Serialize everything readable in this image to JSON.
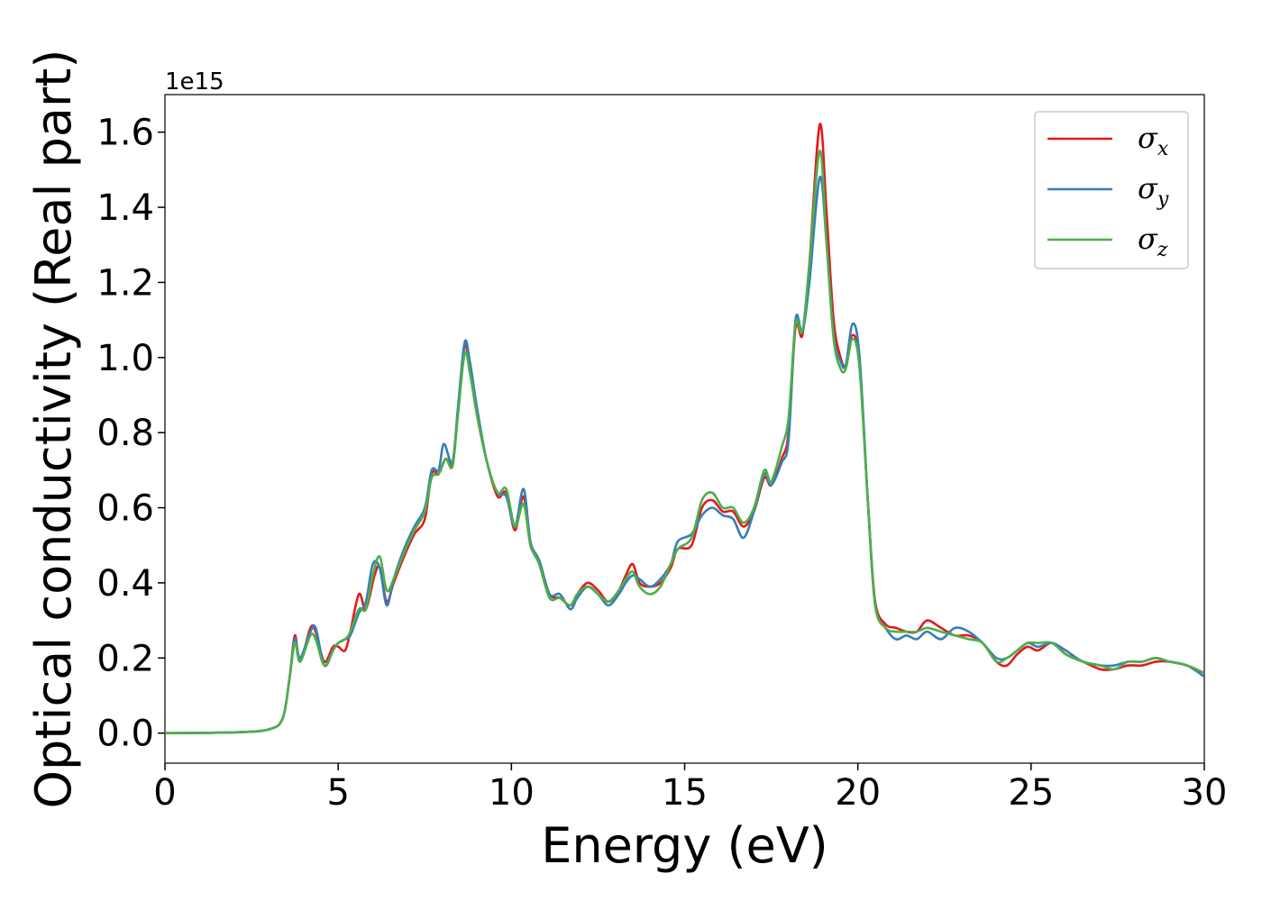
{
  "chart_data": {
    "type": "line",
    "title": "",
    "xlabel": "Energy (eV)",
    "ylabel": "Optical conductivity (Real part)",
    "y_offset_label": "1e15",
    "y_scale_factor": 1000000000000000.0,
    "xlim": [
      0,
      30
    ],
    "ylim": [
      -0.08,
      1.7
    ],
    "xticks": [
      0,
      5,
      10,
      15,
      20,
      25,
      30
    ],
    "xtick_labels": [
      "0",
      "5",
      "10",
      "15",
      "20",
      "25",
      "30"
    ],
    "yticks": [
      0.0,
      0.2,
      0.4,
      0.6,
      0.8,
      1.0,
      1.2,
      1.4,
      1.6
    ],
    "ytick_labels": [
      "0.0",
      "0.2",
      "0.4",
      "0.6",
      "0.8",
      "1.0",
      "1.2",
      "1.4",
      "1.6"
    ],
    "grid": false,
    "legend_position": "top-right",
    "series": [
      {
        "name": "σx",
        "symbol": "σ",
        "subscript": "x",
        "color": "#e41a1c",
        "points": [
          [
            0,
            0
          ],
          [
            2,
            0.002
          ],
          [
            3,
            0.01
          ],
          [
            3.4,
            0.04
          ],
          [
            3.6,
            0.15
          ],
          [
            3.75,
            0.26
          ],
          [
            3.9,
            0.19
          ],
          [
            4.2,
            0.28
          ],
          [
            4.35,
            0.27
          ],
          [
            4.6,
            0.19
          ],
          [
            4.85,
            0.23
          ],
          [
            5.0,
            0.23
          ],
          [
            5.2,
            0.22
          ],
          [
            5.35,
            0.27
          ],
          [
            5.6,
            0.37
          ],
          [
            5.8,
            0.33
          ],
          [
            6.05,
            0.42
          ],
          [
            6.2,
            0.44
          ],
          [
            6.4,
            0.35
          ],
          [
            6.6,
            0.4
          ],
          [
            6.9,
            0.47
          ],
          [
            7.2,
            0.53
          ],
          [
            7.5,
            0.57
          ],
          [
            7.7,
            0.69
          ],
          [
            7.9,
            0.69
          ],
          [
            8.1,
            0.73
          ],
          [
            8.3,
            0.72
          ],
          [
            8.45,
            0.85
          ],
          [
            8.65,
            1.03
          ],
          [
            8.8,
            0.97
          ],
          [
            9.0,
            0.85
          ],
          [
            9.3,
            0.72
          ],
          [
            9.6,
            0.63
          ],
          [
            9.85,
            0.64
          ],
          [
            10.1,
            0.54
          ],
          [
            10.35,
            0.63
          ],
          [
            10.55,
            0.5
          ],
          [
            10.8,
            0.46
          ],
          [
            11.1,
            0.37
          ],
          [
            11.4,
            0.36
          ],
          [
            11.7,
            0.34
          ],
          [
            11.9,
            0.37
          ],
          [
            12.2,
            0.4
          ],
          [
            12.5,
            0.38
          ],
          [
            12.8,
            0.35
          ],
          [
            13.1,
            0.38
          ],
          [
            13.3,
            0.42
          ],
          [
            13.5,
            0.45
          ],
          [
            13.7,
            0.4
          ],
          [
            14.0,
            0.39
          ],
          [
            14.3,
            0.4
          ],
          [
            14.6,
            0.44
          ],
          [
            14.8,
            0.49
          ],
          [
            15.2,
            0.5
          ],
          [
            15.5,
            0.6
          ],
          [
            15.8,
            0.62
          ],
          [
            16.1,
            0.59
          ],
          [
            16.4,
            0.59
          ],
          [
            16.7,
            0.55
          ],
          [
            17.0,
            0.59
          ],
          [
            17.3,
            0.68
          ],
          [
            17.5,
            0.66
          ],
          [
            17.8,
            0.73
          ],
          [
            18.0,
            0.8
          ],
          [
            18.2,
            1.08
          ],
          [
            18.4,
            1.06
          ],
          [
            18.6,
            1.25
          ],
          [
            18.9,
            1.62
          ],
          [
            19.1,
            1.38
          ],
          [
            19.3,
            1.1
          ],
          [
            19.5,
            1.0
          ],
          [
            19.65,
            0.98
          ],
          [
            19.85,
            1.06
          ],
          [
            20.05,
            0.98
          ],
          [
            20.3,
            0.6
          ],
          [
            20.5,
            0.35
          ],
          [
            20.8,
            0.29
          ],
          [
            21.1,
            0.28
          ],
          [
            21.4,
            0.27
          ],
          [
            21.7,
            0.27
          ],
          [
            22.0,
            0.3
          ],
          [
            22.4,
            0.28
          ],
          [
            22.8,
            0.26
          ],
          [
            23.2,
            0.26
          ],
          [
            23.6,
            0.24
          ],
          [
            24.0,
            0.19
          ],
          [
            24.3,
            0.18
          ],
          [
            24.6,
            0.21
          ],
          [
            24.9,
            0.23
          ],
          [
            25.2,
            0.22
          ],
          [
            25.6,
            0.24
          ],
          [
            26.0,
            0.21
          ],
          [
            26.5,
            0.19
          ],
          [
            27.0,
            0.17
          ],
          [
            27.4,
            0.17
          ],
          [
            27.8,
            0.18
          ],
          [
            28.2,
            0.18
          ],
          [
            28.6,
            0.19
          ],
          [
            29.0,
            0.19
          ],
          [
            29.5,
            0.18
          ],
          [
            30.0,
            0.16
          ]
        ]
      },
      {
        "name": "σy",
        "symbol": "σ",
        "subscript": "y",
        "color": "#377eb8",
        "points": [
          [
            0,
            0
          ],
          [
            2,
            0.002
          ],
          [
            3,
            0.01
          ],
          [
            3.4,
            0.04
          ],
          [
            3.6,
            0.15
          ],
          [
            3.75,
            0.25
          ],
          [
            3.9,
            0.2
          ],
          [
            4.2,
            0.27
          ],
          [
            4.35,
            0.28
          ],
          [
            4.6,
            0.18
          ],
          [
            4.85,
            0.22
          ],
          [
            5.0,
            0.24
          ],
          [
            5.2,
            0.25
          ],
          [
            5.35,
            0.26
          ],
          [
            5.6,
            0.32
          ],
          [
            5.8,
            0.35
          ],
          [
            6.0,
            0.45
          ],
          [
            6.2,
            0.44
          ],
          [
            6.4,
            0.34
          ],
          [
            6.6,
            0.41
          ],
          [
            6.9,
            0.49
          ],
          [
            7.2,
            0.55
          ],
          [
            7.5,
            0.6
          ],
          [
            7.7,
            0.7
          ],
          [
            7.9,
            0.7
          ],
          [
            8.05,
            0.77
          ],
          [
            8.3,
            0.72
          ],
          [
            8.45,
            0.86
          ],
          [
            8.65,
            1.04
          ],
          [
            8.8,
            0.99
          ],
          [
            9.0,
            0.87
          ],
          [
            9.3,
            0.72
          ],
          [
            9.6,
            0.64
          ],
          [
            9.85,
            0.63
          ],
          [
            10.1,
            0.55
          ],
          [
            10.35,
            0.65
          ],
          [
            10.55,
            0.51
          ],
          [
            10.8,
            0.46
          ],
          [
            11.1,
            0.37
          ],
          [
            11.4,
            0.37
          ],
          [
            11.7,
            0.33
          ],
          [
            11.9,
            0.36
          ],
          [
            12.2,
            0.39
          ],
          [
            12.5,
            0.37
          ],
          [
            12.8,
            0.34
          ],
          [
            13.1,
            0.37
          ],
          [
            13.3,
            0.4
          ],
          [
            13.5,
            0.42
          ],
          [
            13.7,
            0.41
          ],
          [
            14.0,
            0.39
          ],
          [
            14.3,
            0.41
          ],
          [
            14.6,
            0.45
          ],
          [
            14.8,
            0.51
          ],
          [
            15.2,
            0.53
          ],
          [
            15.5,
            0.58
          ],
          [
            15.8,
            0.6
          ],
          [
            16.1,
            0.58
          ],
          [
            16.4,
            0.57
          ],
          [
            16.7,
            0.52
          ],
          [
            17.0,
            0.59
          ],
          [
            17.3,
            0.69
          ],
          [
            17.5,
            0.66
          ],
          [
            17.8,
            0.72
          ],
          [
            18.0,
            0.78
          ],
          [
            18.2,
            1.1
          ],
          [
            18.4,
            1.07
          ],
          [
            18.6,
            1.2
          ],
          [
            18.9,
            1.48
          ],
          [
            19.1,
            1.3
          ],
          [
            19.3,
            1.06
          ],
          [
            19.5,
            0.99
          ],
          [
            19.65,
            0.98
          ],
          [
            19.85,
            1.09
          ],
          [
            20.05,
            1.0
          ],
          [
            20.3,
            0.6
          ],
          [
            20.5,
            0.34
          ],
          [
            20.8,
            0.28
          ],
          [
            21.1,
            0.25
          ],
          [
            21.4,
            0.26
          ],
          [
            21.7,
            0.25
          ],
          [
            22.0,
            0.27
          ],
          [
            22.4,
            0.25
          ],
          [
            22.8,
            0.28
          ],
          [
            23.2,
            0.27
          ],
          [
            23.6,
            0.24
          ],
          [
            24.0,
            0.2
          ],
          [
            24.3,
            0.2
          ],
          [
            24.6,
            0.22
          ],
          [
            24.9,
            0.24
          ],
          [
            25.2,
            0.23
          ],
          [
            25.6,
            0.24
          ],
          [
            26.0,
            0.22
          ],
          [
            26.5,
            0.19
          ],
          [
            27.0,
            0.18
          ],
          [
            27.4,
            0.18
          ],
          [
            27.8,
            0.19
          ],
          [
            28.2,
            0.19
          ],
          [
            28.6,
            0.2
          ],
          [
            29.0,
            0.19
          ],
          [
            29.5,
            0.18
          ],
          [
            30.0,
            0.15
          ]
        ]
      },
      {
        "name": "σz",
        "symbol": "σ",
        "subscript": "z",
        "color": "#4daf4a",
        "points": [
          [
            0,
            0
          ],
          [
            2,
            0.002
          ],
          [
            3,
            0.01
          ],
          [
            3.4,
            0.04
          ],
          [
            3.6,
            0.15
          ],
          [
            3.75,
            0.24
          ],
          [
            3.9,
            0.19
          ],
          [
            4.2,
            0.26
          ],
          [
            4.35,
            0.25
          ],
          [
            4.6,
            0.18
          ],
          [
            4.85,
            0.22
          ],
          [
            5.0,
            0.24
          ],
          [
            5.2,
            0.25
          ],
          [
            5.35,
            0.27
          ],
          [
            5.6,
            0.33
          ],
          [
            5.8,
            0.33
          ],
          [
            6.0,
            0.42
          ],
          [
            6.2,
            0.47
          ],
          [
            6.4,
            0.38
          ],
          [
            6.6,
            0.41
          ],
          [
            6.9,
            0.48
          ],
          [
            7.2,
            0.54
          ],
          [
            7.5,
            0.59
          ],
          [
            7.7,
            0.68
          ],
          [
            7.9,
            0.69
          ],
          [
            8.1,
            0.73
          ],
          [
            8.3,
            0.71
          ],
          [
            8.45,
            0.84
          ],
          [
            8.65,
            1.01
          ],
          [
            8.8,
            0.96
          ],
          [
            9.0,
            0.85
          ],
          [
            9.3,
            0.72
          ],
          [
            9.6,
            0.64
          ],
          [
            9.85,
            0.65
          ],
          [
            10.1,
            0.55
          ],
          [
            10.35,
            0.61
          ],
          [
            10.55,
            0.5
          ],
          [
            10.8,
            0.45
          ],
          [
            11.1,
            0.36
          ],
          [
            11.4,
            0.36
          ],
          [
            11.7,
            0.34
          ],
          [
            11.9,
            0.37
          ],
          [
            12.2,
            0.39
          ],
          [
            12.5,
            0.37
          ],
          [
            12.8,
            0.35
          ],
          [
            13.1,
            0.38
          ],
          [
            13.3,
            0.41
          ],
          [
            13.5,
            0.43
          ],
          [
            13.7,
            0.39
          ],
          [
            14.0,
            0.37
          ],
          [
            14.3,
            0.39
          ],
          [
            14.6,
            0.45
          ],
          [
            14.8,
            0.49
          ],
          [
            15.2,
            0.52
          ],
          [
            15.5,
            0.62
          ],
          [
            15.8,
            0.64
          ],
          [
            16.1,
            0.6
          ],
          [
            16.4,
            0.6
          ],
          [
            16.7,
            0.56
          ],
          [
            17.0,
            0.6
          ],
          [
            17.3,
            0.7
          ],
          [
            17.5,
            0.67
          ],
          [
            17.8,
            0.76
          ],
          [
            18.0,
            0.84
          ],
          [
            18.2,
            1.09
          ],
          [
            18.4,
            1.07
          ],
          [
            18.6,
            1.25
          ],
          [
            18.9,
            1.55
          ],
          [
            19.1,
            1.3
          ],
          [
            19.3,
            1.05
          ],
          [
            19.5,
            0.97
          ],
          [
            19.65,
            0.97
          ],
          [
            19.85,
            1.05
          ],
          [
            20.05,
            0.97
          ],
          [
            20.3,
            0.6
          ],
          [
            20.5,
            0.34
          ],
          [
            20.8,
            0.28
          ],
          [
            21.1,
            0.27
          ],
          [
            21.4,
            0.27
          ],
          [
            21.7,
            0.27
          ],
          [
            22.0,
            0.28
          ],
          [
            22.4,
            0.27
          ],
          [
            22.8,
            0.26
          ],
          [
            23.2,
            0.25
          ],
          [
            23.6,
            0.24
          ],
          [
            24.0,
            0.19
          ],
          [
            24.3,
            0.2
          ],
          [
            24.6,
            0.22
          ],
          [
            24.9,
            0.24
          ],
          [
            25.2,
            0.24
          ],
          [
            25.6,
            0.24
          ],
          [
            26.0,
            0.21
          ],
          [
            26.5,
            0.19
          ],
          [
            27.0,
            0.18
          ],
          [
            27.4,
            0.17
          ],
          [
            27.8,
            0.19
          ],
          [
            28.2,
            0.19
          ],
          [
            28.6,
            0.2
          ],
          [
            29.0,
            0.19
          ],
          [
            29.5,
            0.18
          ],
          [
            30.0,
            0.16
          ]
        ]
      }
    ]
  }
}
